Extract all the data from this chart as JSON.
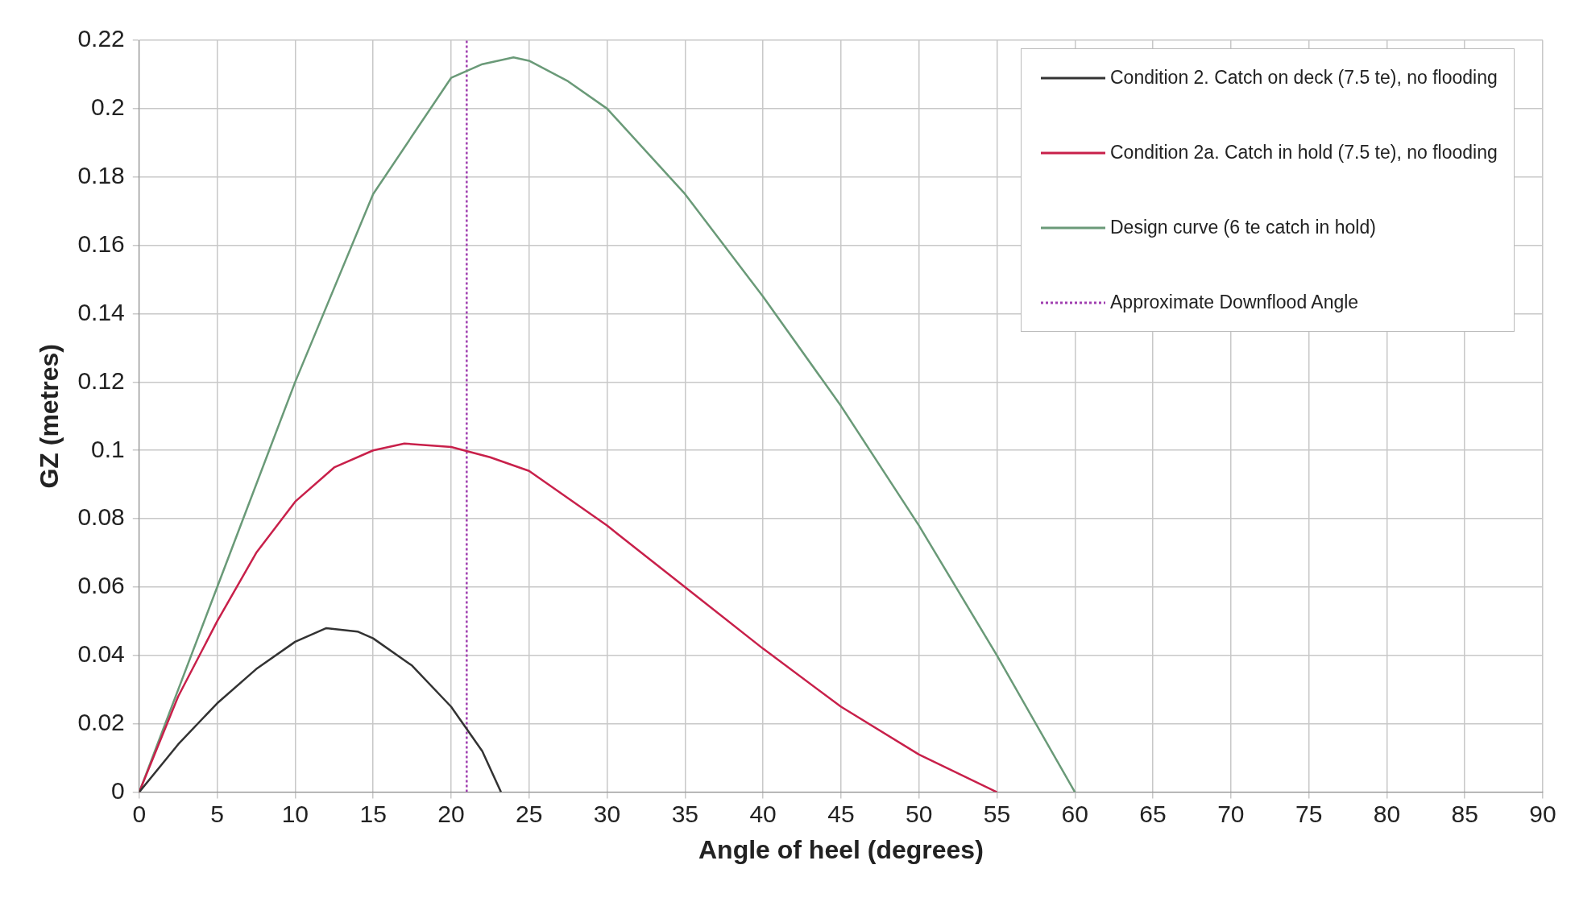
{
  "chart_data": {
    "type": "line",
    "xlabel": "Angle of heel (degrees)",
    "ylabel": "GZ (metres)",
    "xlim": [
      0,
      90
    ],
    "xticks": [
      0,
      5,
      10,
      15,
      20,
      25,
      30,
      35,
      40,
      45,
      50,
      55,
      60,
      65,
      70,
      75,
      80,
      85,
      90
    ],
    "ylim": [
      0,
      0.22
    ],
    "yticks": [
      0,
      0.02,
      0.04,
      0.06,
      0.08,
      0.1,
      0.12,
      0.14,
      0.16,
      0.18,
      0.2,
      0.22
    ],
    "grid": true,
    "legend": "top right",
    "marker": "none",
    "line_style": "solid",
    "series": [
      {
        "name": "Condition 2. Catch on deck (7.5 te), no flooding",
        "color": "#333333",
        "x": [
          0,
          2.5,
          5,
          7.5,
          10,
          12,
          14,
          15,
          17.5,
          20,
          22,
          23.2
        ],
        "values": [
          0,
          0.014,
          0.026,
          0.036,
          0.044,
          0.048,
          0.047,
          0.045,
          0.037,
          0.025,
          0.012,
          0
        ]
      },
      {
        "name": "Condition 2a. Catch in hold (7.5 te), no flooding",
        "color": "#c8204a",
        "x": [
          0,
          2.5,
          5,
          7.5,
          10,
          12.5,
          15,
          17,
          20,
          22.5,
          25,
          30,
          35,
          40,
          45,
          50,
          55
        ],
        "values": [
          0,
          0.028,
          0.05,
          0.07,
          0.085,
          0.095,
          0.1,
          0.102,
          0.101,
          0.098,
          0.094,
          0.078,
          0.06,
          0.042,
          0.025,
          0.011,
          0
        ]
      },
      {
        "name": "Design curve (6 te catch in hold)",
        "color": "#6a9a78",
        "x": [
          0,
          5,
          10,
          15,
          20,
          22,
          24,
          25,
          27.5,
          30,
          35,
          40,
          45,
          50,
          55,
          60
        ],
        "values": [
          0,
          0.06,
          0.12,
          0.175,
          0.209,
          0.213,
          0.215,
          0.214,
          0.208,
          0.2,
          0.175,
          0.145,
          0.113,
          0.078,
          0.04,
          0
        ]
      },
      {
        "name": "Approximate Downflood Angle",
        "color": "#a040b0",
        "line_style": "dotted",
        "x": [
          21,
          21
        ],
        "values": [
          0,
          0.22
        ]
      }
    ]
  }
}
